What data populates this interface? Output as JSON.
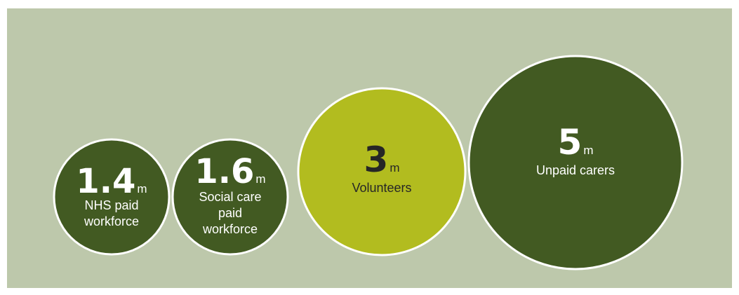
{
  "chart_data": {
    "type": "bubble",
    "items": [
      {
        "value": "1.4",
        "unit": "m",
        "label_lines": [
          "NHS paid",
          "workforce"
        ],
        "color": "#425a22",
        "text_color": "#ffffff"
      },
      {
        "value": "1.6",
        "unit": "m",
        "label_lines": [
          "Social care",
          "paid",
          "workforce"
        ],
        "color": "#425a22",
        "text_color": "#ffffff"
      },
      {
        "value": "3",
        "unit": "m",
        "label_lines": [
          "Volunteers"
        ],
        "color": "#b2bc1f",
        "text_color": "#262626"
      },
      {
        "value": "5",
        "unit": "m",
        "label_lines": [
          "Unpaid carers"
        ],
        "color": "#425a22",
        "text_color": "#ffffff"
      }
    ]
  },
  "colors": {
    "background": "#bdc8ab",
    "outline": "#ffffff"
  }
}
